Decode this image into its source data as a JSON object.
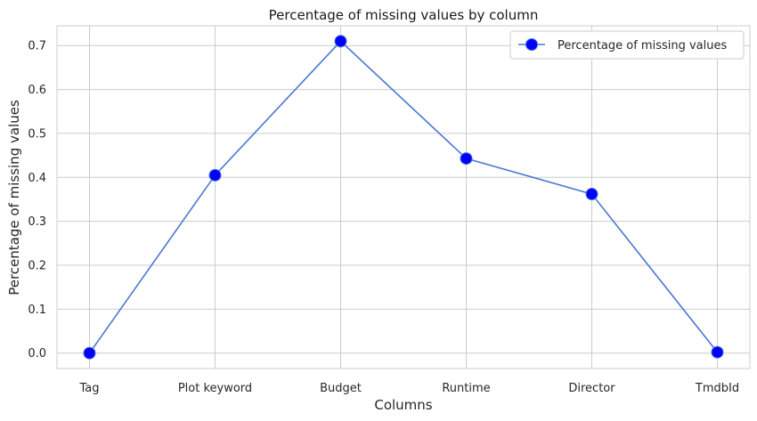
{
  "chart_data": {
    "type": "line",
    "title": "Percentage of missing values by column",
    "xlabel": "Columns",
    "ylabel": "Percentage of missing values",
    "categories": [
      "Tag",
      "Plot keyword",
      "Budget",
      "Runtime",
      "Director",
      "TmdbId"
    ],
    "series": [
      {
        "name": "Percentage of missing values",
        "values": [
          0.0,
          0.405,
          0.71,
          0.443,
          0.362,
          0.002
        ],
        "line_color": "#4878d0",
        "marker_color": "#0000ff"
      }
    ],
    "ylim": [
      -0.035,
      0.745
    ],
    "yticks": [
      "0.0",
      "0.1",
      "0.2",
      "0.3",
      "0.4",
      "0.5",
      "0.6",
      "0.7"
    ],
    "grid": true,
    "legend": "top-right"
  }
}
